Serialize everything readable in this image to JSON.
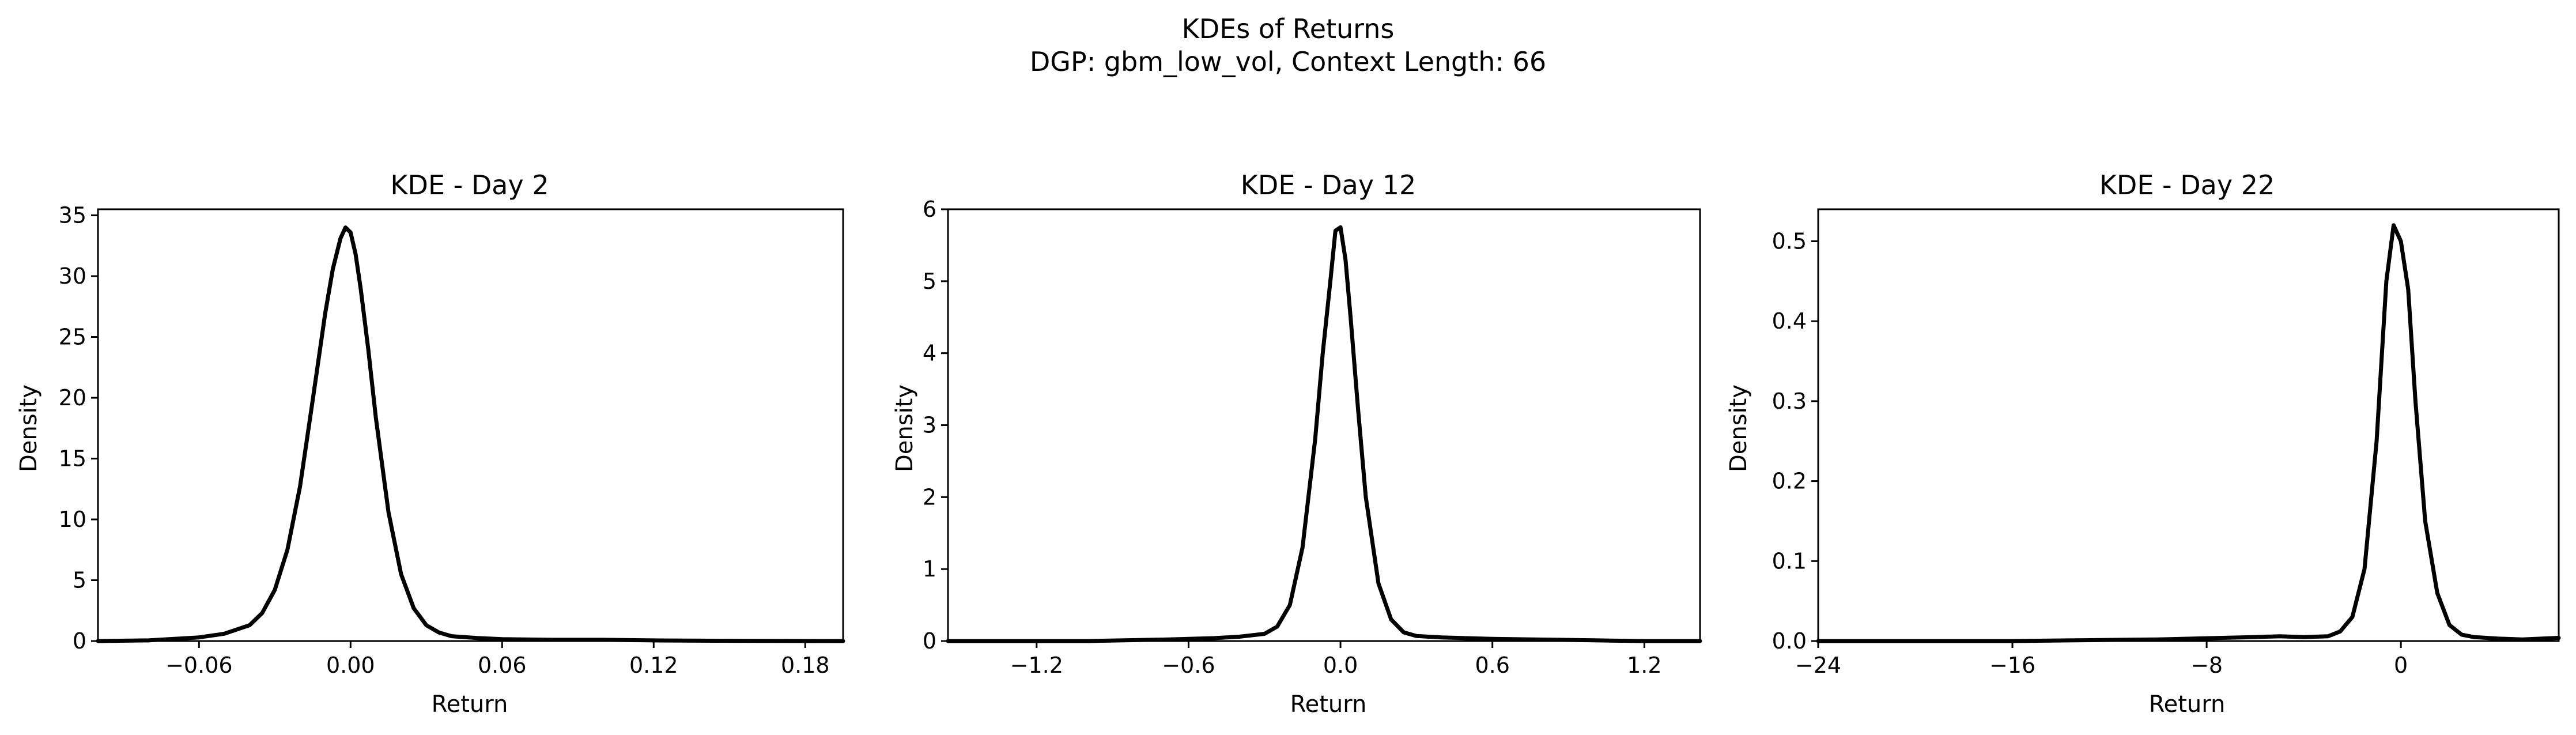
{
  "figure": {
    "title_line1": "KDEs of Returns",
    "title_line2": "DGP: gbm_low_vol, Context Length: 66"
  },
  "colors": {
    "line": "#000000",
    "background": "#ffffff"
  },
  "chart_data": [
    {
      "type": "line",
      "title": "KDE - Day 2",
      "xlabel": "Return",
      "ylabel": "Density",
      "xlim": [
        -0.1,
        0.195
      ],
      "ylim": [
        0,
        35.5
      ],
      "xticks": [
        -0.06,
        0.0,
        0.06,
        0.12,
        0.18
      ],
      "xtick_labels": [
        "−0.06",
        "0.00",
        "0.06",
        "0.12",
        "0.18"
      ],
      "yticks": [
        0,
        5,
        10,
        15,
        20,
        25,
        30,
        35
      ],
      "ytick_labels": [
        "0",
        "5",
        "10",
        "15",
        "20",
        "25",
        "30",
        "35"
      ],
      "grid": false,
      "series": [
        {
          "x": [
            -0.1,
            -0.08,
            -0.06,
            -0.05,
            -0.04,
            -0.035,
            -0.03,
            -0.025,
            -0.02,
            -0.015,
            -0.01,
            -0.007,
            -0.004,
            -0.002,
            0.0,
            0.002,
            0.004,
            0.007,
            0.01,
            0.015,
            0.02,
            0.025,
            0.03,
            0.035,
            0.04,
            0.05,
            0.06,
            0.08,
            0.1,
            0.12,
            0.15,
            0.195
          ],
          "y": [
            0.0,
            0.05,
            0.3,
            0.6,
            1.3,
            2.3,
            4.2,
            7.5,
            12.7,
            19.8,
            27.0,
            30.6,
            33.1,
            34.0,
            33.6,
            31.8,
            29.0,
            24.0,
            18.4,
            10.6,
            5.5,
            2.7,
            1.3,
            0.7,
            0.4,
            0.25,
            0.15,
            0.1,
            0.1,
            0.05,
            0.02,
            0.0
          ]
        }
      ]
    },
    {
      "type": "line",
      "title": "KDE - Day 12",
      "xlabel": "Return",
      "ylabel": "Density",
      "xlim": [
        -1.55,
        1.42
      ],
      "ylim": [
        0,
        6
      ],
      "xticks": [
        -1.2,
        -0.6,
        0.0,
        0.6,
        1.2
      ],
      "xtick_labels": [
        "−1.2",
        "−0.6",
        "0.0",
        "0.6",
        "1.2"
      ],
      "yticks": [
        0,
        1,
        2,
        3,
        4,
        5,
        6
      ],
      "ytick_labels": [
        "0",
        "1",
        "2",
        "3",
        "4",
        "5",
        "6"
      ],
      "grid": false,
      "series": [
        {
          "x": [
            -1.55,
            -1.2,
            -1.0,
            -0.7,
            -0.6,
            -0.5,
            -0.4,
            -0.3,
            -0.25,
            -0.2,
            -0.15,
            -0.1,
            -0.07,
            -0.04,
            -0.02,
            0.0,
            0.02,
            0.04,
            0.07,
            0.1,
            0.15,
            0.2,
            0.25,
            0.3,
            0.4,
            0.6,
            0.8,
            1.0,
            1.2,
            1.42
          ],
          "y": [
            0.0,
            0.0,
            0.0,
            0.02,
            0.03,
            0.04,
            0.06,
            0.1,
            0.2,
            0.5,
            1.3,
            2.8,
            4.0,
            5.0,
            5.7,
            5.75,
            5.3,
            4.5,
            3.2,
            2.0,
            0.8,
            0.3,
            0.12,
            0.07,
            0.05,
            0.03,
            0.02,
            0.01,
            0.0,
            0.0
          ]
        }
      ]
    },
    {
      "type": "line",
      "title": "KDE - Day 22",
      "xlabel": "Return",
      "ylabel": "Density",
      "xlim": [
        -24,
        6.5
      ],
      "ylim": [
        0,
        0.54
      ],
      "xticks": [
        -24,
        -16,
        -8,
        0
      ],
      "xtick_labels": [
        "−24",
        "−16",
        "−8",
        "0"
      ],
      "yticks": [
        0.0,
        0.1,
        0.2,
        0.3,
        0.4,
        0.5
      ],
      "ytick_labels": [
        "0.0",
        "0.1",
        "0.2",
        "0.3",
        "0.4",
        "0.5"
      ],
      "grid": false,
      "series": [
        {
          "x": [
            -24,
            -16,
            -10,
            -6,
            -5,
            -4,
            -3,
            -2.5,
            -2,
            -1.5,
            -1.0,
            -0.6,
            -0.3,
            0.0,
            0.3,
            0.6,
            1.0,
            1.5,
            2.0,
            2.5,
            3.0,
            4.0,
            5.0,
            6.5
          ],
          "y": [
            0.0,
            0.0,
            0.002,
            0.005,
            0.006,
            0.005,
            0.006,
            0.012,
            0.03,
            0.09,
            0.25,
            0.45,
            0.52,
            0.5,
            0.44,
            0.3,
            0.15,
            0.06,
            0.02,
            0.008,
            0.005,
            0.003,
            0.002,
            0.004
          ]
        }
      ]
    }
  ]
}
